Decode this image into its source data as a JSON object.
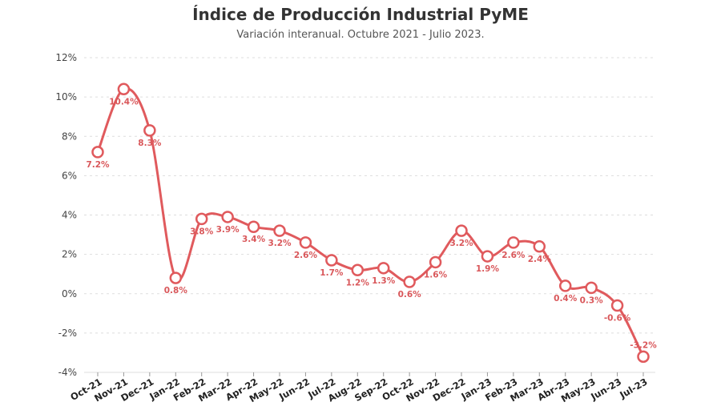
{
  "title": "Índice de Producción Industrial PyME",
  "subtitle": "Variación interanual. Octubre 2021 - Julio 2023.",
  "colors": {
    "line": "#e05a5d",
    "label": "#d9575a",
    "grid": "#dddddd"
  },
  "chart_data": {
    "type": "line",
    "title": "Índice de Producción Industrial PyME",
    "subtitle": "Variación interanual. Octubre 2021 - Julio 2023.",
    "categories": [
      "Oct-21",
      "Nov-21",
      "Dec-21",
      "Jan-22",
      "Feb-22",
      "Mar-22",
      "Apr-22",
      "May-22",
      "Jun-22",
      "Jul-22",
      "Aug-22",
      "Sep-22",
      "Oct-22",
      "Nov-22",
      "Dec-22",
      "Jan-23",
      "Feb-23",
      "Mar-23",
      "Abr-23",
      "May-23",
      "Jun-23",
      "Jul-23"
    ],
    "values": [
      7.2,
      10.4,
      8.3,
      0.8,
      3.8,
      3.9,
      3.4,
      3.2,
      2.6,
      1.7,
      1.2,
      1.3,
      0.6,
      1.6,
      3.2,
      1.9,
      2.6,
      2.4,
      0.4,
      0.3,
      -0.6,
      -3.2
    ],
    "data_labels": [
      "7.2%",
      "10.4%",
      "8.3%",
      "0.8%",
      "3.8%",
      "3.9%",
      "3.4%",
      "3.2%",
      "2.6%",
      "1.7%",
      "1.2%",
      "1.3%",
      "0.6%",
      "1.6%",
      "3.2%",
      "1.9%",
      "2.6%",
      "2.4%",
      "0.4%",
      "0.3%",
      "-0.6%",
      "-3.2%"
    ],
    "ylim": [
      -4,
      12
    ],
    "yticks": [
      -4,
      -2,
      0,
      2,
      4,
      6,
      8,
      10,
      12
    ],
    "ytick_labels": [
      "-4%",
      "-2%",
      "0%",
      "2%",
      "4%",
      "6%",
      "8%",
      "10%",
      "12%"
    ],
    "grid": true
  }
}
